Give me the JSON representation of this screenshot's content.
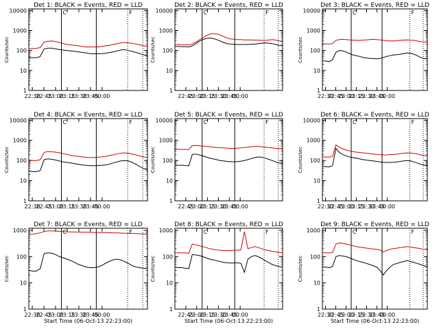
{
  "chart_data": [
    {
      "type": "line",
      "title": "Det 1: BLACK = Events, RED = LLD",
      "ylabel": "Counts/sec",
      "xlabel": "",
      "x_ticks": [
        "22:30",
        "22:45",
        "23:00",
        "23:15",
        "23:30",
        "23:45",
        "00:00"
      ],
      "x_range_min": [
        22.2,
        32.4
      ],
      "y_ticks": [
        "1",
        "10",
        "100",
        "1000",
        "10000"
      ],
      "ylim": [
        1,
        12000
      ],
      "yscale": "log",
      "solid_markers_min": [
        25.0,
        28.0
      ],
      "dotted_markers_min": [
        30.7,
        32.0
      ],
      "label_marks": [
        "C",
        "F"
      ],
      "label_marks_min": [
        25.0,
        30.7
      ],
      "series": [
        {
          "color": "#d00000",
          "start_min": 22.2,
          "values": [
            120,
            125,
            128,
            140,
            260,
            290,
            300,
            280,
            250,
            220,
            200,
            190,
            180,
            170,
            160,
            150,
            150,
            150,
            150,
            160,
            170,
            180,
            200,
            220,
            240,
            250,
            240,
            230,
            210,
            190,
            170,
            160
          ]
        },
        {
          "color": "#000000",
          "start_min": 22.2,
          "values": [
            45,
            44,
            43,
            50,
            120,
            130,
            130,
            120,
            110,
            105,
            100,
            95,
            90,
            85,
            80,
            75,
            70,
            68,
            68,
            70,
            72,
            78,
            85,
            95,
            105,
            110,
            100,
            90,
            80,
            70,
            60,
            55
          ]
        }
      ]
    },
    {
      "type": "line",
      "title": "Det 2: BLACK = Events, RED = LLD",
      "ylabel": "Counts/sec",
      "xlabel": "",
      "x_ticks": [
        "22:45",
        "23:00",
        "23:15",
        "23:30",
        "23:45",
        "00:00"
      ],
      "x_range_min": [
        22.5,
        32.4
      ],
      "y_ticks": [
        "1",
        "10",
        "100",
        "1000",
        "10000"
      ],
      "ylim": [
        1,
        12000
      ],
      "yscale": "log",
      "solid_markers_min": [
        25.0,
        28.0
      ],
      "dotted_markers_min": [
        30.7,
        32.0
      ],
      "label_marks": [
        "C",
        "F"
      ],
      "label_marks_min": [
        25.0,
        30.7
      ],
      "series": [
        {
          "color": "#d00000",
          "start_min": 22.5,
          "values": [
            200,
            200,
            195,
            195,
            190,
            210,
            260,
            340,
            420,
            550,
            650,
            700,
            680,
            600,
            500,
            420,
            380,
            360,
            350,
            350,
            340,
            340,
            340,
            330,
            330,
            320,
            320,
            330,
            350,
            330,
            300,
            280
          ]
        },
        {
          "color": "#000000",
          "start_min": 22.5,
          "values": [
            160,
            160,
            155,
            155,
            150,
            170,
            220,
            290,
            350,
            400,
            420,
            400,
            350,
            300,
            250,
            220,
            210,
            205,
            200,
            200,
            200,
            200,
            205,
            210,
            220,
            230,
            240,
            230,
            220,
            200,
            180,
            170
          ]
        }
      ]
    },
    {
      "type": "line",
      "title": "Det 3: BLACK = Events, RED = LLD",
      "ylabel": "Counts/sec",
      "xlabel": "",
      "x_ticks": [
        "22:30",
        "22:45",
        "23:00",
        "23:15",
        "23:30",
        "23:45",
        "00:00"
      ],
      "x_range_min": [
        22.2,
        32.4
      ],
      "y_ticks": [
        "1",
        "10",
        "100",
        "1000",
        "10000"
      ],
      "ylim": [
        1,
        12000
      ],
      "yscale": "log",
      "solid_markers_min": [
        25.0,
        28.0
      ],
      "dotted_markers_min": [
        30.7,
        32.0
      ],
      "label_marks": [
        "C",
        "F"
      ],
      "label_marks_min": [
        25.0,
        30.7
      ],
      "series": [
        {
          "color": "#d00000",
          "start_min": 22.2,
          "values": [
            220,
            215,
            210,
            220,
            320,
            350,
            360,
            350,
            340,
            330,
            320,
            320,
            330,
            340,
            350,
            360,
            350,
            340,
            320,
            310,
            300,
            300,
            310,
            320,
            330,
            340,
            330,
            320,
            300,
            280,
            260,
            250
          ]
        },
        {
          "color": "#000000",
          "start_min": 22.2,
          "values": [
            30,
            30,
            28,
            35,
            80,
            100,
            95,
            85,
            70,
            60,
            55,
            50,
            45,
            42,
            40,
            40,
            38,
            40,
            45,
            50,
            55,
            60,
            62,
            65,
            70,
            75,
            72,
            65,
            55,
            45,
            40,
            38
          ]
        }
      ]
    },
    {
      "type": "line",
      "title": "Det 4: BLACK = Events, RED = LLD",
      "ylabel": "Counts/sec",
      "xlabel": "",
      "x_ticks": [
        "22:30",
        "22:45",
        "23:00",
        "23:15",
        "23:30",
        "23:45",
        "00:00"
      ],
      "x_range_min": [
        22.2,
        32.4
      ],
      "y_ticks": [
        "1",
        "10",
        "100",
        "1000",
        "10000"
      ],
      "ylim": [
        1,
        12000
      ],
      "yscale": "log",
      "solid_markers_min": [
        25.0,
        28.0
      ],
      "dotted_markers_min": [
        30.7,
        32.0
      ],
      "label_marks": [
        "C",
        "F"
      ],
      "label_marks_min": [
        25.0,
        30.7
      ],
      "series": [
        {
          "color": "#d00000",
          "start_min": 22.2,
          "values": [
            105,
            100,
            100,
            110,
            250,
            280,
            270,
            260,
            240,
            220,
            200,
            180,
            170,
            160,
            150,
            145,
            140,
            140,
            145,
            150,
            160,
            175,
            190,
            210,
            230,
            240,
            230,
            210,
            190,
            170,
            150,
            140
          ]
        },
        {
          "color": "#000000",
          "start_min": 22.2,
          "values": [
            30,
            28,
            28,
            32,
            110,
            120,
            115,
            105,
            95,
            85,
            80,
            75,
            70,
            65,
            60,
            57,
            55,
            55,
            56,
            58,
            60,
            65,
            75,
            85,
            95,
            100,
            95,
            80,
            65,
            50,
            40,
            35
          ]
        }
      ]
    },
    {
      "type": "line",
      "title": "Det 5: BLACK = Events, RED = LLD",
      "ylabel": "Counts/sec",
      "xlabel": "",
      "x_ticks": [
        "22:45",
        "23:00",
        "23:15",
        "23:30",
        "23:45",
        "00:00"
      ],
      "x_range_min": [
        22.5,
        32.4
      ],
      "y_ticks": [
        "1",
        "10",
        "100",
        "1000",
        "10000"
      ],
      "ylim": [
        1,
        12000
      ],
      "yscale": "log",
      "solid_markers_min": [
        25.0,
        28.0
      ],
      "dotted_markers_min": [
        30.7,
        32.0
      ],
      "label_marks": [
        "C",
        "F"
      ],
      "label_marks_min": [
        25.0,
        30.7
      ],
      "series": [
        {
          "color": "#d00000",
          "start_min": 22.5,
          "values": [
            360,
            360,
            355,
            355,
            350,
            550,
            560,
            540,
            520,
            500,
            480,
            460,
            440,
            430,
            420,
            410,
            400,
            400,
            410,
            420,
            440,
            460,
            480,
            500,
            500,
            480,
            460,
            440,
            420,
            400,
            390,
            380
          ]
        },
        {
          "color": "#000000",
          "start_min": 22.5,
          "values": [
            60,
            58,
            58,
            56,
            55,
            200,
            210,
            190,
            170,
            150,
            130,
            120,
            110,
            100,
            95,
            90,
            88,
            86,
            88,
            92,
            100,
            110,
            125,
            140,
            150,
            145,
            130,
            115,
            100,
            85,
            75,
            70
          ]
        }
      ]
    },
    {
      "type": "line",
      "title": "Det 6: BLACK = Events, RED = LLD",
      "ylabel": "Counts/sec",
      "xlabel": "",
      "x_ticks": [
        "22:30",
        "22:45",
        "23:00",
        "23:15",
        "23:30",
        "23:45",
        "00:00"
      ],
      "x_range_min": [
        22.2,
        32.4
      ],
      "y_ticks": [
        "1",
        "10",
        "100",
        "1000",
        "10000"
      ],
      "ylim": [
        1,
        12000
      ],
      "yscale": "log",
      "solid_markers_min": [
        25.0,
        28.0
      ],
      "dotted_markers_min": [
        30.7,
        32.0
      ],
      "label_marks": [
        "C",
        "F"
      ],
      "label_marks_min": [
        25.0,
        30.7
      ],
      "series": [
        {
          "color": "#d00000",
          "start_min": 22.2,
          "values": [
            150,
            150,
            148,
            160,
            600,
            450,
            380,
            330,
            300,
            280,
            260,
            250,
            240,
            230,
            220,
            210,
            200,
            195,
            190,
            190,
            195,
            200,
            210,
            220,
            230,
            240,
            235,
            225,
            210,
            190,
            175,
            165
          ]
        },
        {
          "color": "#000000",
          "start_min": 22.2,
          "values": [
            50,
            50,
            48,
            55,
            400,
            250,
            200,
            170,
            150,
            140,
            130,
            120,
            110,
            105,
            100,
            95,
            90,
            85,
            82,
            80,
            80,
            82,
            85,
            90,
            95,
            100,
            95,
            85,
            75,
            65,
            60,
            55
          ]
        }
      ]
    },
    {
      "type": "line",
      "title": "Det 7: BLACK = Events, RED = LLD",
      "ylabel": "Counts/sec",
      "xlabel": "Start Time (06-Oct-13 22:23:00)",
      "x_ticks": [
        "22:30",
        "22:45",
        "23:00",
        "23:15",
        "23:30",
        "23:45",
        "00:00"
      ],
      "x_range_min": [
        22.2,
        32.4
      ],
      "y_ticks": [
        "1",
        "10",
        "100",
        "1000"
      ],
      "ylim": [
        1,
        1200
      ],
      "yscale": "log",
      "solid_markers_min": [
        25.0,
        28.0
      ],
      "dotted_markers_min": [
        30.7,
        32.0
      ],
      "label_marks": [
        "C",
        "F"
      ],
      "label_marks_min": [
        25.0,
        30.7
      ],
      "series": [
        {
          "color": "#d00000",
          "start_min": 22.2,
          "values": [
            700,
            720,
            750,
            800,
            900,
            950,
            950,
            930,
            920,
            900,
            880,
            870,
            860,
            850,
            850,
            840,
            840,
            830,
            830,
            820,
            820,
            810,
            800,
            800,
            790,
            780,
            770,
            760,
            750,
            740,
            730,
            720
          ]
        },
        {
          "color": "#000000",
          "start_min": 22.2,
          "values": [
            30,
            28,
            28,
            35,
            130,
            140,
            135,
            120,
            100,
            90,
            80,
            70,
            60,
            50,
            45,
            40,
            38,
            38,
            40,
            45,
            55,
            65,
            75,
            80,
            75,
            65,
            55,
            45,
            40,
            38,
            36,
            35
          ]
        }
      ]
    },
    {
      "type": "line",
      "title": "Det 8: BLACK = Events, RED = LLD",
      "ylabel": "Counts/sec",
      "xlabel": "Start Time (06-Oct-13 22:23:00)",
      "x_ticks": [
        "22:45",
        "23:00",
        "23:15",
        "23:30",
        "23:45",
        "00:00"
      ],
      "x_range_min": [
        22.5,
        32.4
      ],
      "y_ticks": [
        "1",
        "10",
        "100",
        "1000"
      ],
      "ylim": [
        1,
        1200
      ],
      "yscale": "log",
      "solid_markers_min": [
        25.0,
        28.0
      ],
      "dotted_markers_min": [
        30.7,
        32.0
      ],
      "label_marks": [
        "C",
        "F"
      ],
      "label_marks_min": [
        25.0,
        30.7
      ],
      "series": [
        {
          "color": "#d00000",
          "start_min": 22.5,
          "values": [
            140,
            140,
            138,
            140,
            135,
            300,
            280,
            260,
            240,
            220,
            200,
            190,
            180,
            175,
            170,
            170,
            170,
            175,
            175,
            180,
            900,
            200,
            220,
            240,
            220,
            200,
            180,
            170,
            160,
            150,
            145,
            140
          ]
        },
        {
          "color": "#000000",
          "start_min": 22.5,
          "values": [
            40,
            38,
            38,
            36,
            35,
            120,
            115,
            110,
            100,
            90,
            80,
            75,
            70,
            65,
            60,
            58,
            57,
            57,
            58,
            55,
            25,
            80,
            100,
            110,
            100,
            85,
            70,
            60,
            50,
            45,
            42,
            40
          ]
        }
      ]
    },
    {
      "type": "line",
      "title": "Det 9: BLACK = Events, RED = LLD",
      "ylabel": "Counts/sec",
      "xlabel": "Start Time (06-Oct-13 22:23:00)",
      "x_ticks": [
        "22:30",
        "22:45",
        "23:00",
        "23:15",
        "23:30",
        "23:45",
        "00:00"
      ],
      "x_range_min": [
        22.2,
        32.4
      ],
      "y_ticks": [
        "1",
        "10",
        "100",
        "1000"
      ],
      "ylim": [
        1,
        1200
      ],
      "yscale": "log",
      "solid_markers_min": [
        25.0,
        28.0
      ],
      "dotted_markers_min": [
        30.7,
        32.0
      ],
      "label_marks": [
        "C",
        "F"
      ],
      "label_marks_min": [
        25.0,
        30.7
      ],
      "series": [
        {
          "color": "#d00000",
          "start_min": 22.2,
          "values": [
            140,
            140,
            138,
            145,
            300,
            330,
            320,
            300,
            280,
            260,
            240,
            230,
            220,
            210,
            200,
            195,
            190,
            180,
            150,
            170,
            190,
            200,
            210,
            220,
            230,
            240,
            230,
            220,
            210,
            200,
            190,
            180
          ]
        },
        {
          "color": "#000000",
          "start_min": 22.2,
          "values": [
            40,
            40,
            38,
            42,
            100,
            110,
            105,
            100,
            90,
            80,
            70,
            65,
            60,
            55,
            50,
            45,
            40,
            30,
            20,
            30,
            40,
            50,
            55,
            60,
            65,
            70,
            65,
            60,
            55,
            50,
            45,
            40
          ]
        }
      ]
    }
  ]
}
